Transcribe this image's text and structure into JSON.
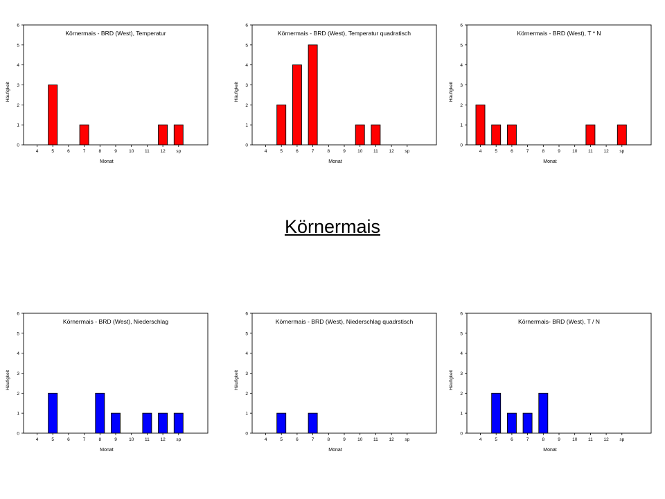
{
  "page": {
    "center_title": "Körnermais"
  },
  "colors": {
    "temperature_bars": "#ff0000",
    "precipitation_bars": "#0000ff"
  },
  "chart_data": [
    {
      "type": "bar",
      "title": "Körnermais - BRD (West), Temperatur",
      "xlabel": "Monat",
      "ylabel": "Häufigkeit",
      "categories": [
        "4",
        "5",
        "6",
        "7",
        "8",
        "9",
        "10",
        "11",
        "12",
        "sp"
      ],
      "values": [
        0,
        3,
        0,
        1,
        0,
        0,
        0,
        0,
        1,
        1
      ],
      "ylim": [
        0,
        6
      ],
      "yticks": [
        "0",
        "1",
        "2",
        "3",
        "4",
        "5",
        "6"
      ],
      "color": "#ff0000"
    },
    {
      "type": "bar",
      "title": "Körnermais - BRD (West), Temperatur quadratisch",
      "xlabel": "Monat",
      "ylabel": "Häufigkeit",
      "categories": [
        "4",
        "5",
        "6",
        "7",
        "8",
        "9",
        "10",
        "11",
        "12",
        "sp"
      ],
      "values": [
        0,
        2,
        4,
        5,
        0,
        0,
        1,
        1,
        0,
        0
      ],
      "ylim": [
        0,
        6
      ],
      "yticks": [
        "0",
        "1",
        "2",
        "3",
        "4",
        "5",
        "6"
      ],
      "color": "#ff0000"
    },
    {
      "type": "bar",
      "title": "Körnermais - BRD (West), T * N",
      "xlabel": "Monat",
      "ylabel": "Häufigkeit",
      "categories": [
        "4",
        "5",
        "6",
        "7",
        "8",
        "9",
        "10",
        "11",
        "12",
        "sp"
      ],
      "values": [
        2,
        1,
        1,
        0,
        0,
        0,
        0,
        1,
        0,
        1
      ],
      "ylim": [
        0,
        6
      ],
      "yticks": [
        "0",
        "1",
        "2",
        "3",
        "4",
        "5",
        "6"
      ],
      "color": "#ff0000"
    },
    {
      "type": "bar",
      "title": "Körnermais - BRD (West), Niederschlag",
      "xlabel": "Monat",
      "ylabel": "Häufigkeit",
      "categories": [
        "4",
        "5",
        "6",
        "7",
        "8",
        "9",
        "10",
        "11",
        "12",
        "sp"
      ],
      "values": [
        0,
        2,
        0,
        0,
        2,
        1,
        0,
        1,
        1,
        1
      ],
      "ylim": [
        0,
        6
      ],
      "yticks": [
        "0",
        "1",
        "2",
        "3",
        "4",
        "5",
        "6"
      ],
      "color": "#0000ff"
    },
    {
      "type": "bar",
      "title": "Körnermais - BRD (West), Niederschlag quadrstisch",
      "xlabel": "Monat",
      "ylabel": "Häufigkeit",
      "categories": [
        "4",
        "5",
        "6",
        "7",
        "8",
        "9",
        "10",
        "11",
        "12",
        "sp"
      ],
      "values": [
        0,
        1,
        0,
        1,
        0,
        0,
        0,
        0,
        0,
        0
      ],
      "ylim": [
        0,
        6
      ],
      "yticks": [
        "0",
        "1",
        "2",
        "3",
        "4",
        "5",
        "6"
      ],
      "color": "#0000ff"
    },
    {
      "type": "bar",
      "title": "Körnermais- BRD (West), T / N",
      "xlabel": "Monat",
      "ylabel": "Häufigkeit",
      "categories": [
        "4",
        "5",
        "6",
        "7",
        "8",
        "9",
        "10",
        "11",
        "12",
        "sp"
      ],
      "values": [
        0,
        2,
        1,
        1,
        2,
        0,
        0,
        0,
        0,
        0
      ],
      "ylim": [
        0,
        6
      ],
      "yticks": [
        "0",
        "1",
        "2",
        "3",
        "4",
        "5",
        "6"
      ],
      "color": "#0000ff"
    }
  ]
}
